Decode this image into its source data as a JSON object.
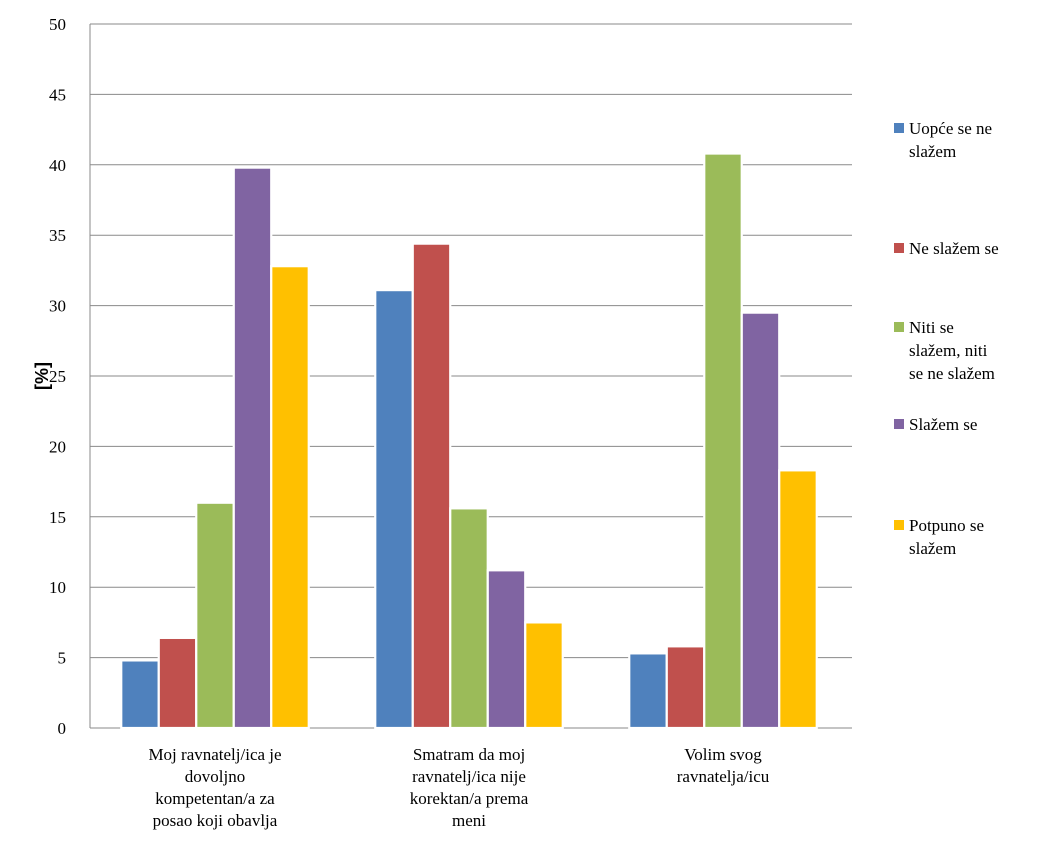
{
  "chart_data": {
    "type": "bar",
    "title": "",
    "xlabel": "",
    "ylabel": "[%]",
    "ylim": [
      0,
      50
    ],
    "yticks": [
      0,
      5,
      10,
      15,
      20,
      25,
      30,
      35,
      40,
      45,
      50
    ],
    "grid": true,
    "legend_position": "right",
    "categories": [
      [
        "Moj ravnatelj/ica je",
        "dovoljno",
        "kompetentan/a za",
        "posao koji obavlja"
      ],
      [
        "Smatram da moj",
        "ravnatelj/ica nije",
        "korektan/a prema",
        "meni"
      ],
      [
        "Volim svog",
        "ravnatelja/icu"
      ]
    ],
    "series": [
      {
        "name": [
          "Uopće se ne",
          "slažem"
        ],
        "color": "#4F81BD",
        "values": [
          4.8,
          31.1,
          5.3
        ]
      },
      {
        "name": [
          "Ne slažem se"
        ],
        "color": "#C0504D",
        "values": [
          6.4,
          34.4,
          5.8
        ]
      },
      {
        "name": [
          "Niti se",
          "slažem, niti",
          "se ne slažem"
        ],
        "color": "#9BBB59",
        "values": [
          16.0,
          15.6,
          40.8
        ]
      },
      {
        "name": [
          "Slažem se"
        ],
        "color": "#8064A2",
        "values": [
          39.8,
          11.2,
          29.5
        ]
      },
      {
        "name": [
          "Potpuno se",
          "slažem"
        ],
        "color": "#FFC000",
        "values": [
          32.8,
          7.5,
          18.3
        ]
      }
    ]
  }
}
